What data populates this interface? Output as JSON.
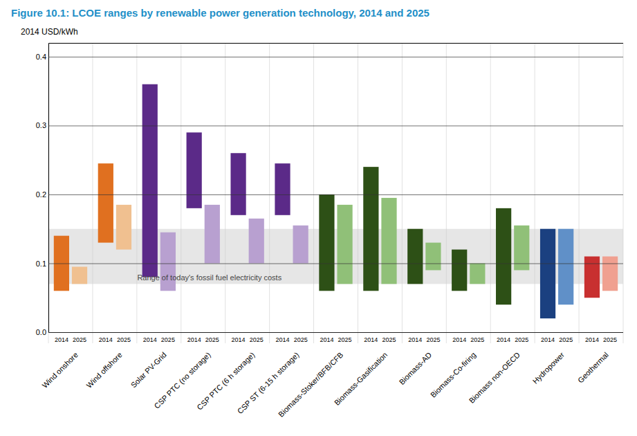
{
  "chart_data": {
    "type": "bar",
    "title": "Figure 10.1: LCOE ranges by renewable power generation technology, 2014 and 2025",
    "ylabel": "2014 USD/kWh",
    "categories": [
      "Wind onshore",
      "Wind offshore",
      "Solar PV-Grid",
      "CSP PTC (no storage)",
      "CSP PTC (6 h storage)",
      "CSP ST (6-15 h storage)",
      "Biomass-Stoker/BFB/CFB",
      "Biomass-Gasification",
      "Biomass-AD",
      "Biomass-Co-firing",
      "Biomass non-OECD",
      "Hydropower",
      "Geothermal"
    ],
    "series": [
      {
        "name": "2014",
        "low": [
          0.06,
          0.13,
          0.08,
          0.18,
          0.17,
          0.17,
          0.06,
          0.06,
          0.07,
          0.06,
          0.04,
          0.02,
          0.05
        ],
        "high": [
          0.14,
          0.245,
          0.36,
          0.29,
          0.26,
          0.245,
          0.2,
          0.24,
          0.15,
          0.12,
          0.18,
          0.15,
          0.11
        ],
        "colors": [
          "#E07020",
          "#E07020",
          "#5B2A88",
          "#5B2A88",
          "#5B2A88",
          "#5B2A88",
          "#2D5016",
          "#2D5016",
          "#2D5016",
          "#2D5016",
          "#2D5016",
          "#1B4080",
          "#C83030"
        ]
      },
      {
        "name": "2025",
        "low": [
          0.07,
          0.12,
          0.06,
          0.1,
          0.1,
          0.1,
          0.07,
          0.07,
          0.09,
          0.07,
          0.09,
          0.04,
          0.06
        ],
        "high": [
          0.095,
          0.185,
          0.145,
          0.185,
          0.165,
          0.155,
          0.185,
          0.195,
          0.13,
          0.1,
          0.155,
          0.15,
          0.11
        ],
        "colors": [
          "#F0C090",
          "#F0C090",
          "#B8A0D0",
          "#B8A0D0",
          "#B8A0D0",
          "#B8A0D0",
          "#90C078",
          "#90C078",
          "#90C078",
          "#90C078",
          "#90C078",
          "#6090C8",
          "#F0A090"
        ]
      }
    ],
    "annotations": [
      {
        "text": "Range of today's fossil fuel electricity costs",
        "y_range": [
          0.07,
          0.15
        ]
      }
    ],
    "ylim": [
      0.0,
      0.42
    ],
    "yticks": [
      {
        "value": 0.0,
        "label": "0.0"
      },
      0.1,
      0.2,
      0.3,
      0.4
    ],
    "grid": true
  }
}
